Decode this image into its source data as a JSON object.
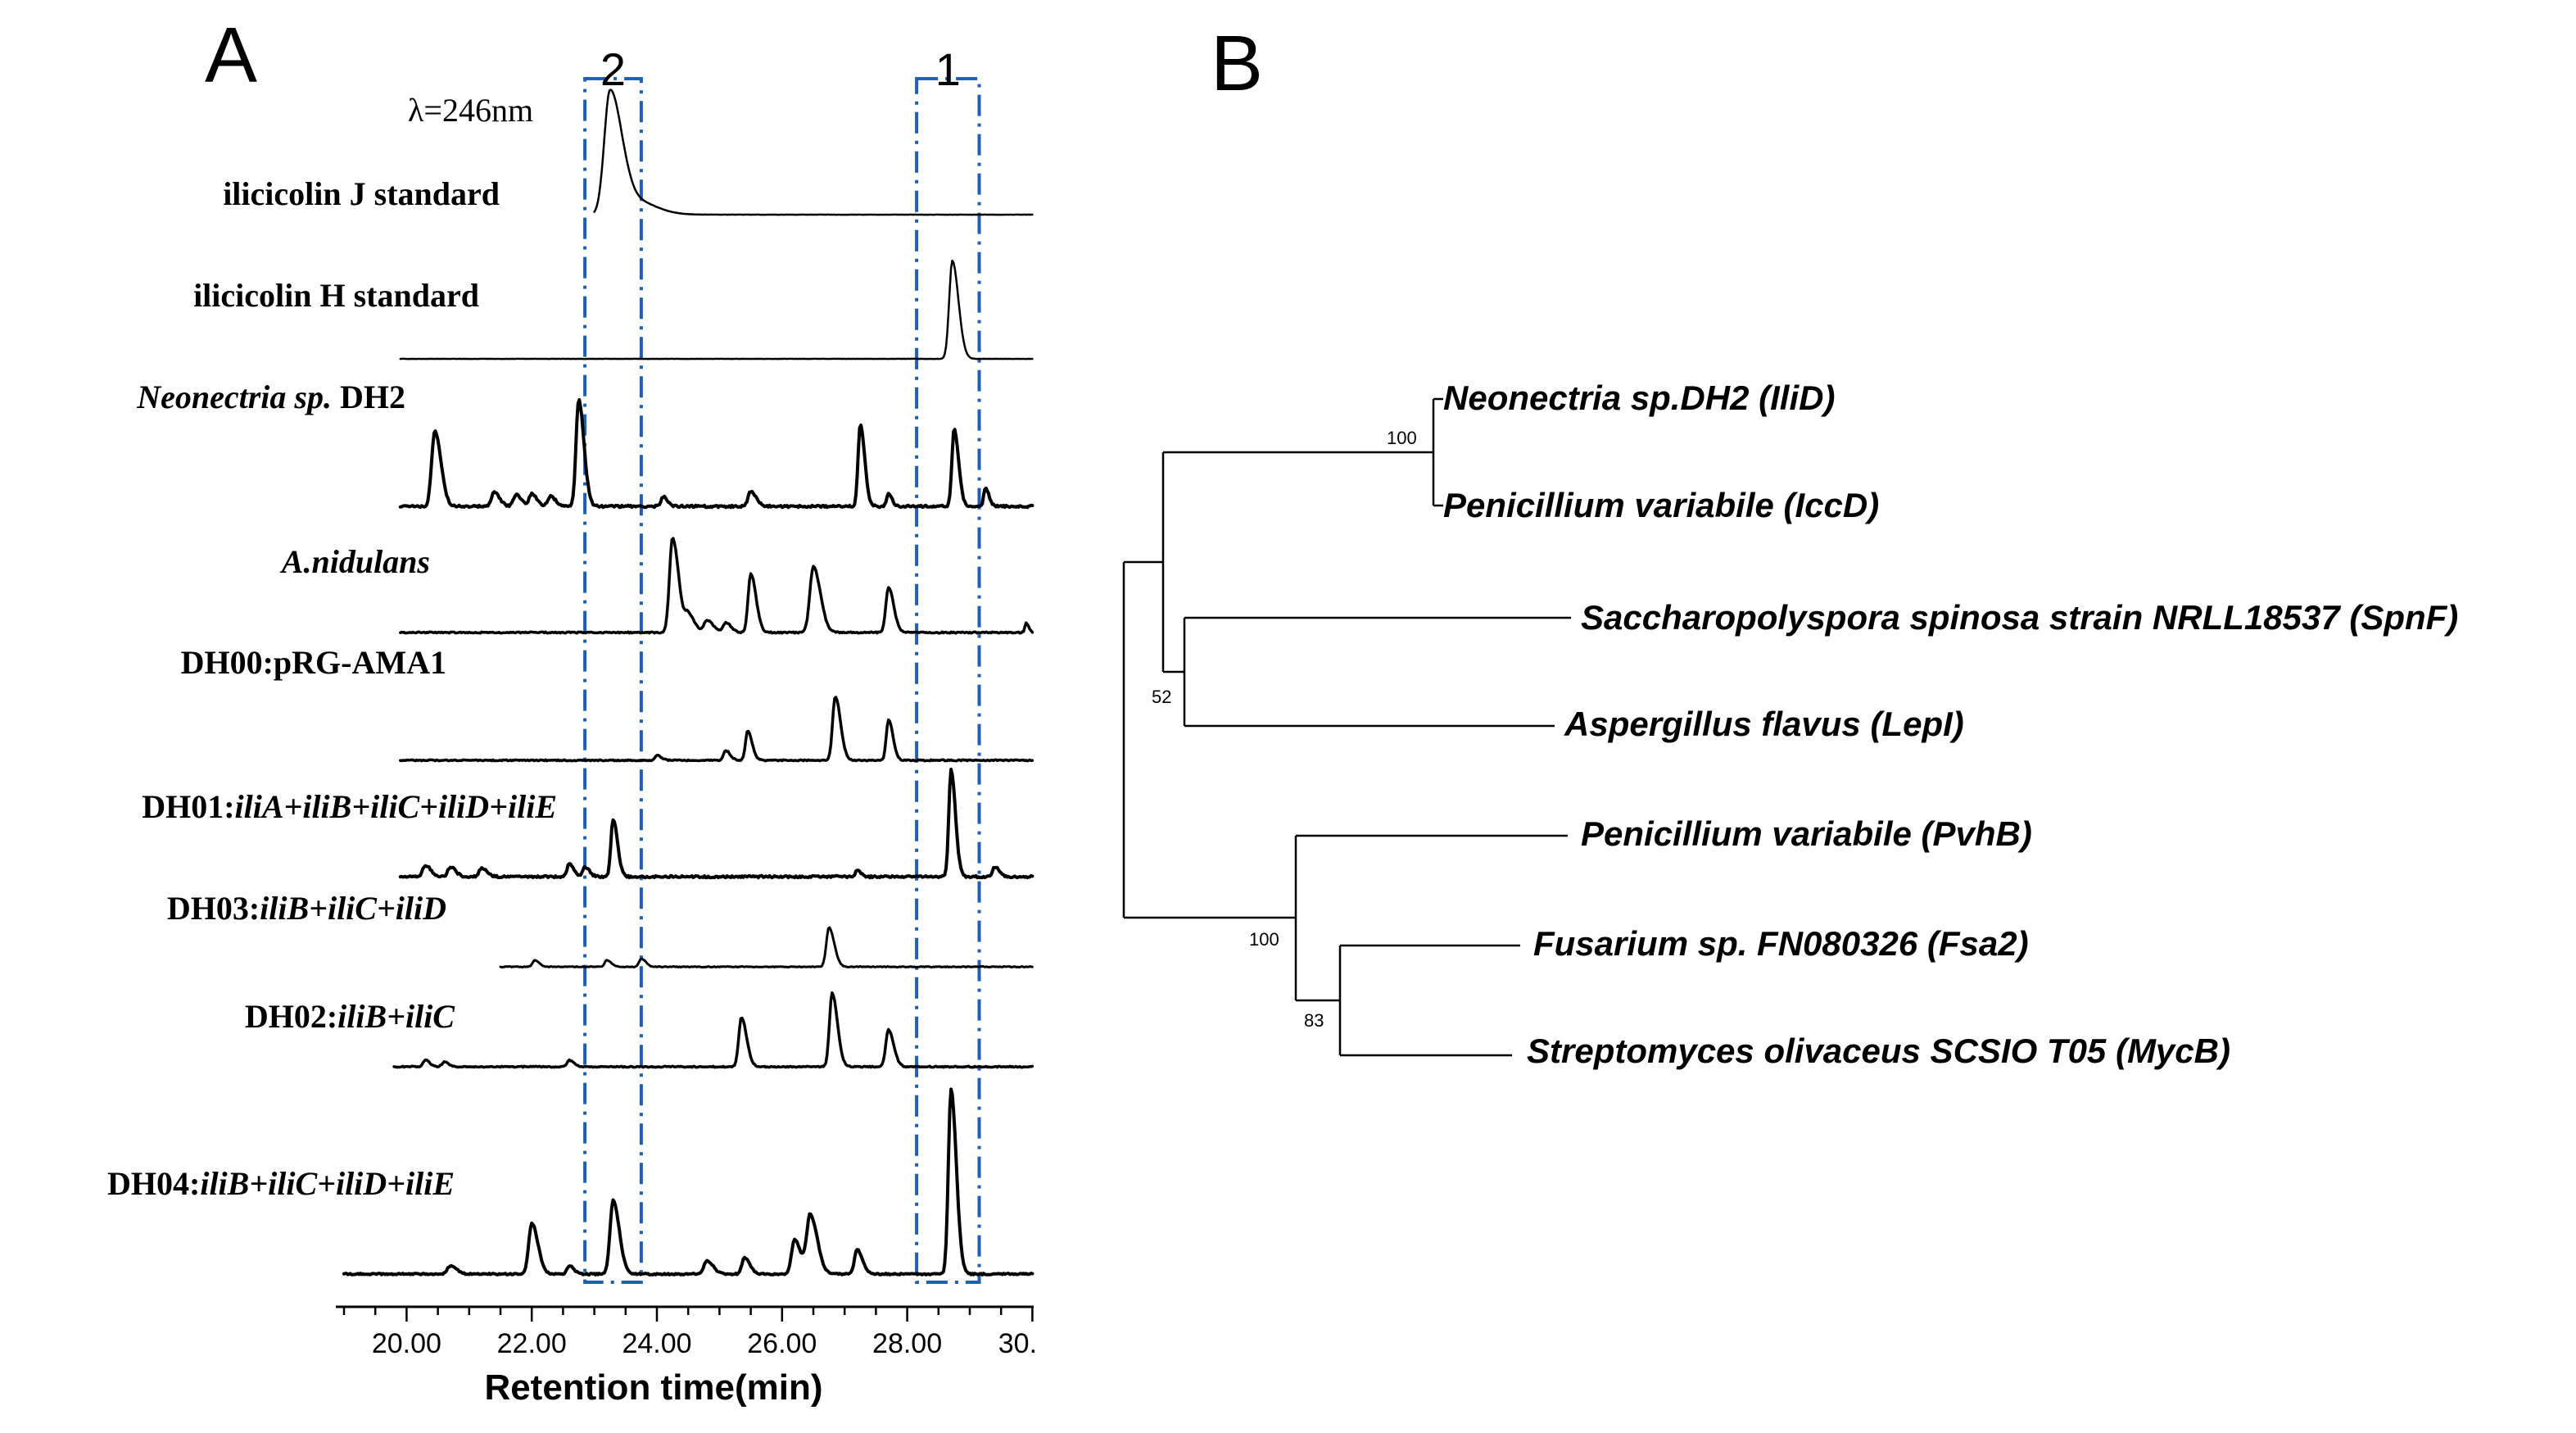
{
  "panels": {
    "a_letter": "A",
    "b_letter": "B"
  },
  "chromatogram": {
    "wavelength_label": "λ=246nm",
    "peak_windows": [
      {
        "label": "2",
        "rt_start": 22.85,
        "rt_end": 23.75
      },
      {
        "label": "1",
        "rt_start": 28.15,
        "rt_end": 29.15
      }
    ]
  },
  "chart_data": {
    "type": "line",
    "title": "λ=246nm",
    "xlabel": "Retention time(min)",
    "ylabel": "",
    "xlim": [
      19.0,
      30.0
    ],
    "x_ticks": [
      20.0,
      22.0,
      24.0,
      26.0,
      28.0,
      30.0
    ],
    "x_tick_labels": [
      "20.00",
      "22.00",
      "24.00",
      "26.00",
      "28.00",
      "30."
    ],
    "series": [
      {
        "name": "ilicicolin J standard",
        "label_parts": [
          {
            "text": "ilicicolin J standard",
            "italic": false
          }
        ],
        "x_start": 23.0,
        "x_end": 30.0,
        "noise": 0.2,
        "stroke": 2.5,
        "peaks": [
          [
            23.25,
            150,
            0.13
          ],
          [
            23.6,
            18,
            0.25
          ]
        ]
      },
      {
        "name": "ilicicolin H standard",
        "label_parts": [
          {
            "text": "ilicicolin H standard",
            "italic": false
          }
        ],
        "x_start": 19.9,
        "x_end": 30.0,
        "noise": 0.2,
        "stroke": 2.5,
        "peaks": [
          [
            28.72,
            120,
            0.07
          ]
        ]
      },
      {
        "name": "Neonectria sp. DH2",
        "label_parts": [
          {
            "text": "Neonectria sp. ",
            "italic": true
          },
          {
            "text": "DH2",
            "italic": false
          }
        ],
        "x_start": 19.9,
        "x_end": 30.0,
        "noise": 2.6,
        "stroke": 4,
        "peaks": [
          [
            20.45,
            92,
            0.07
          ],
          [
            21.4,
            18,
            0.06
          ],
          [
            21.75,
            14,
            0.06
          ],
          [
            22.0,
            15,
            0.06
          ],
          [
            22.3,
            12,
            0.06
          ],
          [
            22.75,
            130,
            0.06
          ],
          [
            24.1,
            12,
            0.05
          ],
          [
            25.5,
            18,
            0.06
          ],
          [
            27.25,
            100,
            0.05
          ],
          [
            27.7,
            15,
            0.04
          ],
          [
            28.75,
            95,
            0.05
          ],
          [
            29.25,
            22,
            0.04
          ]
        ]
      },
      {
        "name": "A.nidulans",
        "label_parts": [
          {
            "text": "A.nidulans",
            "italic": true
          }
        ],
        "x_start": 19.9,
        "x_end": 30.0,
        "noise": 1.6,
        "stroke": 3.5,
        "peaks": [
          [
            24.25,
            115,
            0.07
          ],
          [
            24.5,
            22,
            0.07
          ],
          [
            24.8,
            15,
            0.07
          ],
          [
            25.1,
            12,
            0.06
          ],
          [
            25.5,
            72,
            0.06
          ],
          [
            26.5,
            80,
            0.08
          ],
          [
            27.7,
            55,
            0.06
          ],
          [
            29.9,
            12,
            0.03
          ]
        ]
      },
      {
        "name": "DH00:pRG-AMA1",
        "label_parts": [
          {
            "text": "DH00:pRG-AMA1",
            "italic": false
          }
        ],
        "x_start": 19.9,
        "x_end": 30.0,
        "noise": 1.4,
        "stroke": 3.5,
        "peaks": [
          [
            24.0,
            6,
            0.05
          ],
          [
            25.1,
            12,
            0.05
          ],
          [
            25.45,
            36,
            0.05
          ],
          [
            26.85,
            78,
            0.06
          ],
          [
            27.7,
            50,
            0.05
          ]
        ]
      },
      {
        "name": "DH01:iliA+iliB+iliC+iliD+iliE",
        "label_parts": [
          {
            "text": "DH01:",
            "italic": false
          },
          {
            "text": "iliA+iliB+iliC+iliD+iliE",
            "italic": true
          }
        ],
        "x_start": 19.9,
        "x_end": 30.0,
        "noise": 2.4,
        "stroke": 4,
        "peaks": [
          [
            20.3,
            14,
            0.06
          ],
          [
            20.7,
            12,
            0.06
          ],
          [
            21.2,
            10,
            0.06
          ],
          [
            22.6,
            16,
            0.05
          ],
          [
            22.85,
            12,
            0.05
          ],
          [
            23.3,
            70,
            0.05
          ],
          [
            27.2,
            8,
            0.04
          ],
          [
            28.7,
            130,
            0.05
          ],
          [
            29.4,
            12,
            0.05
          ]
        ]
      },
      {
        "name": "DH03:iliB+iliC+iliD",
        "label_parts": [
          {
            "text": "DH03:",
            "italic": false
          },
          {
            "text": "iliB+iliC+iliD",
            "italic": true
          }
        ],
        "x_start": 21.5,
        "x_end": 30.0,
        "noise": 1.0,
        "stroke": 3,
        "peaks": [
          [
            22.05,
            8,
            0.05
          ],
          [
            23.2,
            8,
            0.05
          ],
          [
            23.75,
            10,
            0.05
          ],
          [
            26.75,
            48,
            0.06
          ]
        ]
      },
      {
        "name": "DH02:iliB+iliC",
        "label_parts": [
          {
            "text": "DH02:",
            "italic": false
          },
          {
            "text": "iliB+iliC",
            "italic": true
          }
        ],
        "x_start": 19.8,
        "x_end": 30.0,
        "noise": 1.4,
        "stroke": 3.5,
        "peaks": [
          [
            20.3,
            8,
            0.05
          ],
          [
            20.6,
            6,
            0.05
          ],
          [
            22.6,
            8,
            0.05
          ],
          [
            25.35,
            60,
            0.06
          ],
          [
            26.8,
            90,
            0.06
          ],
          [
            27.7,
            45,
            0.06
          ]
        ]
      },
      {
        "name": "DH04:iliB+iliC+iliD+iliE",
        "label_parts": [
          {
            "text": "DH04:",
            "italic": false
          },
          {
            "text": "iliB+iliC+iliD+iliE",
            "italic": true
          }
        ],
        "x_start": 19.0,
        "x_end": 30.0,
        "noise": 1.8,
        "stroke": 4,
        "peaks": [
          [
            20.7,
            10,
            0.07
          ],
          [
            22.0,
            62,
            0.07
          ],
          [
            22.6,
            10,
            0.05
          ],
          [
            23.3,
            90,
            0.07
          ],
          [
            24.8,
            16,
            0.07
          ],
          [
            25.4,
            20,
            0.06
          ],
          [
            26.2,
            42,
            0.07
          ],
          [
            26.45,
            72,
            0.08
          ],
          [
            27.2,
            30,
            0.06
          ],
          [
            28.7,
            225,
            0.06
          ]
        ]
      }
    ]
  },
  "phylogeny": {
    "leaves": [
      "Neonectria sp.DH2 (IliD)",
      "Penicillium variabile (IccD)",
      "Saccharopolyspora spinosa strain NRLL18537 (SpnF)",
      "Aspergillus flavus (LepI)",
      "Penicillium variabile (PvhB)",
      "Fusarium sp. FN080326 (Fsa2)",
      "Streptomyces olivaceus SCSIO T05 (MycB)"
    ],
    "bootstrap_values": [
      "100",
      "52",
      "100",
      "83"
    ]
  }
}
